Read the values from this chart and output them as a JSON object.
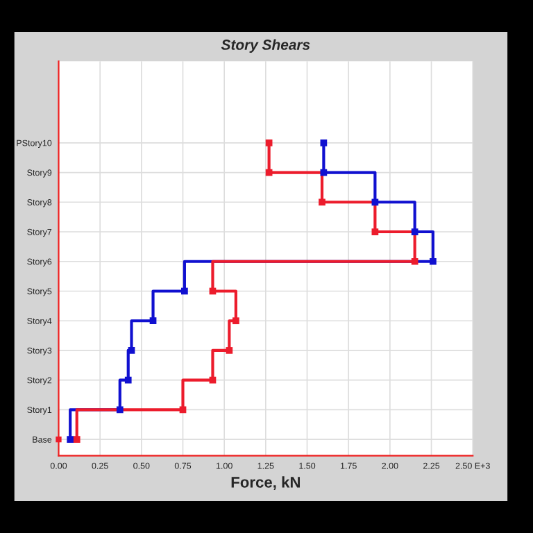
{
  "chart_data": {
    "type": "step",
    "title": "Story Shears",
    "xlabel": "Force, kN",
    "orientation": "horizontal",
    "categories": [
      "PStory10",
      "Story9",
      "Story8",
      "Story7",
      "Story6",
      "Story5",
      "Story4",
      "Story3",
      "Story2",
      "Story1",
      "Base"
    ],
    "series": [
      {
        "color": "#1010d0",
        "values": [
          1.6,
          1.6,
          1.91,
          2.15,
          2.26,
          0.76,
          0.57,
          0.44,
          0.42,
          0.37,
          0.07
        ]
      },
      {
        "color": "#ec1c2c",
        "values": [
          1.27,
          1.27,
          1.59,
          1.91,
          2.15,
          0.93,
          1.07,
          1.03,
          0.93,
          0.75,
          0.11
        ]
      },
      {
        "type": "scatter",
        "color": "#ec1c2c",
        "values": [
          null,
          null,
          null,
          null,
          null,
          null,
          null,
          null,
          null,
          null,
          0
        ]
      }
    ],
    "xlim": [
      0,
      2.5
    ],
    "xticks": [
      {
        "value": 0,
        "label": "0.00"
      },
      {
        "value": 0.25,
        "label": "0.25"
      },
      {
        "value": 0.5,
        "label": "0.50"
      },
      {
        "value": 0.75,
        "label": "0.75"
      },
      {
        "value": 1,
        "label": "1.00"
      },
      {
        "value": 1.25,
        "label": "1.25"
      },
      {
        "value": 1.5,
        "label": "1.50"
      },
      {
        "value": 1.75,
        "label": "1.75"
      },
      {
        "value": 2,
        "label": "2.00"
      },
      {
        "value": 2.25,
        "label": "2.25"
      },
      {
        "value": 2.5,
        "label": "2.50 E+3"
      }
    ],
    "grid": true,
    "marker": "square",
    "line_style": "solid"
  }
}
